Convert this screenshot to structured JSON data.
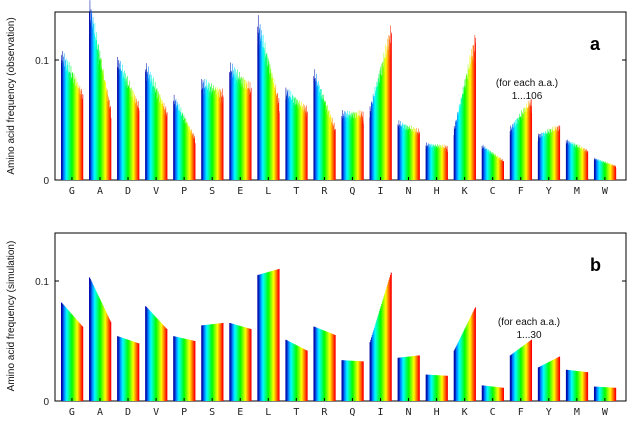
{
  "chart_data": [
    {
      "type": "bar",
      "panel_label": "a",
      "ylabel": "Amino acid frequency (observation)",
      "ylim": [
        0,
        0.14
      ],
      "yticks": [
        0,
        0.1
      ],
      "ytick_labels": [
        "0",
        "0.1"
      ],
      "annotation_line1": "(for each a.a.)",
      "annotation_line2": "1...106",
      "bars_per_group": 106,
      "gradient": "blue-to-red rainbow across each group",
      "categories": [
        "G",
        "A",
        "D",
        "V",
        "P",
        "S",
        "E",
        "L",
        "T",
        "R",
        "Q",
        "I",
        "N",
        "H",
        "K",
        "C",
        "F",
        "Y",
        "M",
        "W"
      ],
      "group_start_values": [
        0.1,
        0.139,
        0.095,
        0.09,
        0.065,
        0.077,
        0.089,
        0.125,
        0.07,
        0.085,
        0.052,
        0.055,
        0.045,
        0.028,
        0.04,
        0.027,
        0.04,
        0.035,
        0.031,
        0.017
      ],
      "group_end_values": [
        0.067,
        0.055,
        0.058,
        0.053,
        0.033,
        0.068,
        0.072,
        0.061,
        0.055,
        0.04,
        0.052,
        0.118,
        0.038,
        0.026,
        0.112,
        0.015,
        0.063,
        0.042,
        0.023,
        0.011
      ]
    },
    {
      "type": "bar",
      "panel_label": "b",
      "ylabel": "Amino acid frequency (simulation)",
      "ylim": [
        0,
        0.14
      ],
      "yticks": [
        0,
        0.1
      ],
      "ytick_labels": [
        "0",
        "0.1"
      ],
      "annotation_line1": "(for each a.a.)",
      "annotation_line2": "1...30",
      "bars_per_group": 30,
      "gradient": "blue-to-red rainbow across each group",
      "categories": [
        "G",
        "A",
        "D",
        "V",
        "P",
        "S",
        "E",
        "L",
        "T",
        "R",
        "Q",
        "I",
        "N",
        "H",
        "K",
        "C",
        "F",
        "Y",
        "M",
        "W"
      ],
      "group_start_values": [
        0.082,
        0.103,
        0.054,
        0.079,
        0.054,
        0.063,
        0.065,
        0.105,
        0.051,
        0.062,
        0.034,
        0.049,
        0.036,
        0.022,
        0.042,
        0.013,
        0.038,
        0.028,
        0.026,
        0.012
      ],
      "group_end_values": [
        0.062,
        0.066,
        0.048,
        0.06,
        0.05,
        0.065,
        0.06,
        0.11,
        0.042,
        0.055,
        0.033,
        0.107,
        0.038,
        0.021,
        0.078,
        0.011,
        0.051,
        0.037,
        0.024,
        0.011
      ]
    }
  ]
}
